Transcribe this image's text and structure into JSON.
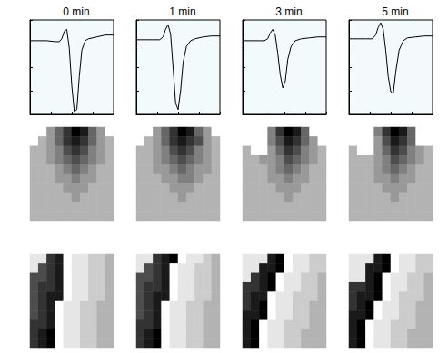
{
  "chart_data": [
    {
      "type": "line",
      "title": "0 min",
      "x": [
        0,
        10,
        20,
        30,
        35,
        38,
        41,
        44,
        47,
        50,
        53,
        56,
        59,
        62,
        66,
        70,
        80,
        90,
        100
      ],
      "values": [
        78,
        78,
        78,
        77,
        77,
        80,
        88,
        90,
        70,
        30,
        3,
        5,
        40,
        68,
        78,
        80,
        82,
        84,
        84
      ],
      "xlim": [
        0,
        100
      ],
      "ylim": [
        0,
        100
      ],
      "xticks": [
        0,
        25,
        50,
        75,
        100
      ],
      "yticks": [
        0,
        25,
        50,
        75,
        100
      ],
      "grid": false,
      "tick_labels": false,
      "color": "#000000"
    },
    {
      "type": "line",
      "title": "1 min",
      "x": [
        0,
        10,
        20,
        28,
        32,
        35,
        38,
        41,
        44,
        47,
        50,
        53,
        56,
        60,
        65,
        70,
        80,
        90,
        100
      ],
      "values": [
        79,
        79,
        79,
        79,
        82,
        90,
        95,
        85,
        50,
        12,
        5,
        25,
        55,
        72,
        78,
        80,
        82,
        83,
        83
      ],
      "xlim": [
        0,
        100
      ],
      "ylim": [
        0,
        100
      ],
      "xticks": [
        0,
        25,
        50,
        75,
        100
      ],
      "yticks": [
        0,
        25,
        50,
        75,
        100
      ],
      "grid": false,
      "tick_labels": false,
      "color": "#000000"
    },
    {
      "type": "line",
      "title": "3 min",
      "x": [
        0,
        10,
        20,
        26,
        30,
        33,
        36,
        39,
        42,
        45,
        48,
        51,
        54,
        58,
        63,
        70,
        80,
        90,
        100
      ],
      "values": [
        78,
        78,
        78,
        78,
        80,
        86,
        90,
        84,
        65,
        42,
        28,
        35,
        58,
        72,
        78,
        80,
        81,
        82,
        82
      ],
      "xlim": [
        0,
        100
      ],
      "ylim": [
        0,
        100
      ],
      "xticks": [
        0,
        25,
        50,
        75,
        100
      ],
      "yticks": [
        0,
        25,
        50,
        75,
        100
      ],
      "grid": false,
      "tick_labels": false,
      "color": "#000000"
    },
    {
      "type": "line",
      "title": "5 min",
      "x": [
        0,
        10,
        20,
        28,
        32,
        35,
        38,
        41,
        44,
        47,
        50,
        53,
        56,
        60,
        65,
        70,
        80,
        90,
        100
      ],
      "values": [
        80,
        80,
        80,
        80,
        84,
        92,
        97,
        90,
        68,
        40,
        24,
        22,
        45,
        68,
        78,
        81,
        82,
        83,
        83
      ],
      "xlim": [
        0,
        100
      ],
      "ylim": [
        0,
        100
      ],
      "xticks": [
        0,
        25,
        50,
        75,
        100
      ],
      "yticks": [
        0,
        25,
        50,
        75,
        100
      ],
      "grid": false,
      "tick_labels": false,
      "color": "#000000"
    },
    {
      "type": "heatmap",
      "zlim": [
        0,
        10
      ],
      "tick_labels": false,
      "cells": [
        [
          0,
          0,
          4,
          6,
          8,
          10,
          9,
          6,
          4,
          0
        ],
        [
          0,
          3,
          4,
          6,
          8,
          9,
          8,
          6,
          4,
          3
        ],
        [
          3,
          3,
          4,
          5,
          7,
          8,
          7,
          5,
          4,
          3
        ],
        [
          3,
          3,
          4,
          5,
          6,
          7,
          6,
          5,
          4,
          3
        ],
        [
          3,
          3,
          3,
          4,
          5,
          6,
          5,
          4,
          3,
          3
        ],
        [
          3,
          3,
          3,
          4,
          4,
          5,
          4,
          4,
          3,
          3
        ],
        [
          3,
          3,
          3,
          3,
          4,
          4,
          4,
          3,
          3,
          3
        ],
        [
          3,
          3,
          3,
          3,
          3,
          4,
          3,
          3,
          3,
          3
        ],
        [
          3,
          3,
          3,
          3,
          3,
          3,
          3,
          3,
          3,
          3
        ],
        [
          3,
          3,
          3,
          3,
          3,
          3,
          3,
          3,
          3,
          3
        ]
      ]
    },
    {
      "type": "heatmap",
      "zlim": [
        0,
        10
      ],
      "tick_labels": false,
      "cells": [
        [
          0,
          0,
          4,
          6,
          8,
          10,
          9,
          6,
          4,
          0
        ],
        [
          0,
          3,
          4,
          6,
          8,
          9,
          8,
          7,
          4,
          3
        ],
        [
          3,
          3,
          4,
          5,
          7,
          8,
          7,
          5,
          4,
          3
        ],
        [
          3,
          3,
          4,
          5,
          6,
          7,
          6,
          5,
          4,
          3
        ],
        [
          3,
          3,
          4,
          4,
          5,
          6,
          5,
          4,
          4,
          3
        ],
        [
          3,
          3,
          3,
          4,
          4,
          5,
          5,
          4,
          3,
          3
        ],
        [
          3,
          3,
          3,
          3,
          4,
          4,
          4,
          3,
          3,
          3
        ],
        [
          3,
          3,
          3,
          3,
          3,
          4,
          3,
          3,
          3,
          3
        ],
        [
          3,
          3,
          3,
          3,
          3,
          3,
          3,
          3,
          3,
          3
        ],
        [
          3,
          3,
          3,
          3,
          3,
          3,
          3,
          3,
          3,
          3
        ]
      ]
    },
    {
      "type": "heatmap",
      "zlim": [
        0,
        10
      ],
      "tick_labels": false,
      "cells": [
        [
          0,
          0,
          0,
          5,
          8,
          10,
          9,
          6,
          0,
          0
        ],
        [
          0,
          0,
          0,
          5,
          7,
          9,
          8,
          6,
          4,
          0
        ],
        [
          3,
          0,
          0,
          4,
          6,
          8,
          7,
          5,
          4,
          3
        ],
        [
          3,
          3,
          4,
          4,
          5,
          7,
          6,
          5,
          4,
          3
        ],
        [
          3,
          3,
          3,
          4,
          5,
          6,
          5,
          4,
          3,
          3
        ],
        [
          3,
          3,
          3,
          4,
          4,
          5,
          4,
          4,
          3,
          3
        ],
        [
          3,
          3,
          3,
          3,
          4,
          4,
          4,
          3,
          3,
          3
        ],
        [
          3,
          3,
          3,
          3,
          3,
          4,
          3,
          3,
          3,
          3
        ],
        [
          3,
          3,
          3,
          3,
          3,
          3,
          3,
          3,
          3,
          3
        ],
        [
          3,
          3,
          3,
          3,
          3,
          3,
          3,
          3,
          3,
          3
        ]
      ]
    },
    {
      "type": "heatmap",
      "zlim": [
        0,
        10
      ],
      "tick_labels": false,
      "cells": [
        [
          0,
          0,
          0,
          5,
          8,
          10,
          9,
          6,
          0,
          0
        ],
        [
          0,
          0,
          0,
          4,
          7,
          9,
          8,
          6,
          0,
          0
        ],
        [
          3,
          0,
          0,
          4,
          6,
          8,
          7,
          5,
          4,
          3
        ],
        [
          3,
          3,
          3,
          4,
          5,
          7,
          6,
          5,
          4,
          3
        ],
        [
          3,
          3,
          3,
          4,
          5,
          6,
          5,
          4,
          3,
          3
        ],
        [
          3,
          3,
          3,
          4,
          4,
          5,
          4,
          4,
          3,
          3
        ],
        [
          3,
          3,
          3,
          3,
          4,
          4,
          4,
          3,
          3,
          3
        ],
        [
          3,
          3,
          3,
          3,
          3,
          4,
          3,
          3,
          3,
          3
        ],
        [
          3,
          3,
          3,
          3,
          3,
          3,
          3,
          3,
          3,
          3
        ],
        [
          3,
          3,
          3,
          3,
          3,
          3,
          3,
          3,
          3,
          3
        ]
      ]
    },
    {
      "type": "heatmap",
      "zlim": [
        0,
        10
      ],
      "tick_labels": false,
      "cells": [
        [
          1,
          1,
          8,
          9,
          0,
          1,
          1,
          2,
          2,
          3
        ],
        [
          1,
          7,
          8,
          9,
          0,
          1,
          1,
          2,
          2,
          3
        ],
        [
          7,
          7,
          8,
          9,
          0,
          1,
          1,
          2,
          2,
          3
        ],
        [
          7,
          8,
          8,
          9,
          0,
          1,
          1,
          2,
          2,
          3
        ],
        [
          7,
          8,
          9,
          9,
          0,
          1,
          1,
          2,
          2,
          3
        ],
        [
          7,
          8,
          9,
          0,
          1,
          1,
          2,
          2,
          3,
          3
        ],
        [
          7,
          8,
          9,
          0,
          1,
          1,
          2,
          2,
          3,
          3
        ],
        [
          8,
          8,
          9,
          0,
          1,
          1,
          2,
          2,
          3,
          3
        ],
        [
          8,
          9,
          10,
          0,
          1,
          1,
          2,
          2,
          3,
          3
        ],
        [
          8,
          9,
          10,
          0,
          1,
          1,
          2,
          2,
          3,
          3
        ]
      ]
    },
    {
      "type": "heatmap",
      "zlim": [
        0,
        10
      ],
      "tick_labels": false,
      "cells": [
        [
          1,
          1,
          8,
          9,
          10,
          0,
          1,
          1,
          2,
          3
        ],
        [
          1,
          7,
          8,
          9,
          0,
          1,
          1,
          2,
          2,
          3
        ],
        [
          7,
          7,
          8,
          9,
          0,
          1,
          1,
          2,
          2,
          3
        ],
        [
          7,
          8,
          8,
          9,
          0,
          1,
          1,
          2,
          2,
          3
        ],
        [
          7,
          8,
          9,
          9,
          0,
          1,
          1,
          2,
          2,
          3
        ],
        [
          7,
          8,
          9,
          0,
          1,
          1,
          2,
          2,
          3,
          3
        ],
        [
          7,
          8,
          9,
          0,
          1,
          1,
          2,
          2,
          3,
          3
        ],
        [
          8,
          8,
          9,
          0,
          1,
          1,
          2,
          2,
          3,
          3
        ],
        [
          8,
          9,
          10,
          0,
          1,
          1,
          2,
          2,
          3,
          3
        ],
        [
          8,
          9,
          10,
          0,
          1,
          1,
          2,
          2,
          3,
          3
        ]
      ]
    },
    {
      "type": "heatmap",
      "zlim": [
        0,
        10
      ],
      "tick_labels": false,
      "cells": [
        [
          1,
          1,
          1,
          9,
          10,
          0,
          1,
          1,
          2,
          2
        ],
        [
          1,
          1,
          9,
          9,
          10,
          0,
          1,
          1,
          2,
          2
        ],
        [
          1,
          8,
          9,
          10,
          0,
          1,
          1,
          2,
          2,
          3
        ],
        [
          8,
          8,
          9,
          10,
          0,
          1,
          1,
          2,
          2,
          3
        ],
        [
          8,
          9,
          9,
          0,
          1,
          1,
          2,
          2,
          2,
          3
        ],
        [
          8,
          9,
          10,
          0,
          1,
          1,
          2,
          2,
          3,
          3
        ],
        [
          9,
          9,
          10,
          0,
          1,
          1,
          2,
          2,
          3,
          3
        ],
        [
          9,
          10,
          0,
          1,
          1,
          2,
          2,
          2,
          3,
          3
        ],
        [
          9,
          10,
          0,
          1,
          1,
          2,
          2,
          3,
          3,
          3
        ],
        [
          9,
          10,
          0,
          1,
          1,
          2,
          2,
          3,
          3,
          3
        ]
      ]
    },
    {
      "type": "heatmap",
      "zlim": [
        0,
        10
      ],
      "tick_labels": false,
      "cells": [
        [
          1,
          1,
          1,
          9,
          10,
          0,
          1,
          1,
          2,
          2
        ],
        [
          1,
          1,
          9,
          9,
          10,
          0,
          1,
          1,
          2,
          2
        ],
        [
          1,
          1,
          9,
          10,
          0,
          1,
          1,
          2,
          2,
          3
        ],
        [
          8,
          8,
          9,
          10,
          0,
          1,
          1,
          2,
          2,
          3
        ],
        [
          8,
          9,
          9,
          10,
          0,
          1,
          2,
          2,
          2,
          3
        ],
        [
          8,
          9,
          10,
          0,
          1,
          1,
          2,
          2,
          3,
          3
        ],
        [
          9,
          9,
          10,
          0,
          1,
          1,
          2,
          2,
          3,
          3
        ],
        [
          9,
          10,
          0,
          1,
          1,
          2,
          2,
          2,
          3,
          3
        ],
        [
          9,
          10,
          0,
          1,
          1,
          2,
          2,
          3,
          3,
          3
        ],
        [
          9,
          10,
          0,
          1,
          1,
          2,
          2,
          3,
          3,
          3
        ]
      ]
    }
  ]
}
